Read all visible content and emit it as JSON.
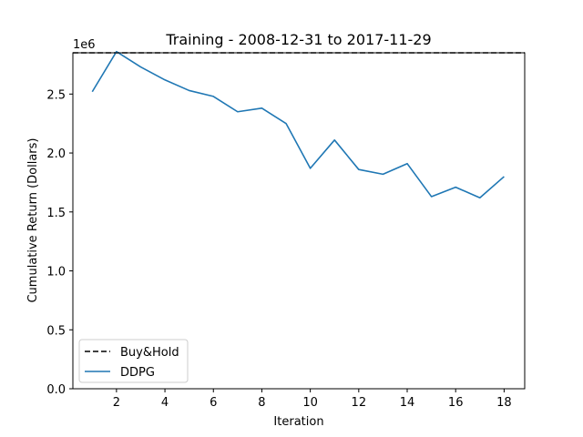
{
  "chart_data": {
    "type": "line",
    "title": "Training - 2008-12-31 to 2017-11-29",
    "xlabel": "Iteration",
    "ylabel": "Cumulative Return (Dollars)",
    "y_offset_label": "1e6",
    "xlim": [
      0.2,
      18.85
    ],
    "ylim": [
      0,
      2.85
    ],
    "x_ticks": [
      2,
      4,
      6,
      8,
      10,
      12,
      14,
      16,
      18
    ],
    "x_tick_labels": [
      "2",
      "4",
      "6",
      "8",
      "10",
      "12",
      "14",
      "16",
      "18"
    ],
    "y_ticks": [
      0,
      0.5,
      1.0,
      1.5,
      2.0,
      2.5
    ],
    "y_tick_labels": [
      "0.0",
      "0.5",
      "1.0",
      "1.5",
      "2.0",
      "2.5"
    ],
    "grid": false,
    "legend_position": "lower-left",
    "series": [
      {
        "name": "Buy&Hold",
        "style": "dashed",
        "color": "#000000",
        "x": [
          0.2,
          18.85
        ],
        "values": [
          2.85,
          2.85
        ]
      },
      {
        "name": "DDPG",
        "style": "solid",
        "color": "#1f77b4",
        "x": [
          1,
          2,
          3,
          4,
          5,
          6,
          7,
          8,
          9,
          10,
          11,
          12,
          13,
          14,
          15,
          16,
          17,
          18
        ],
        "values": [
          2.52,
          2.86,
          2.73,
          2.62,
          2.53,
          2.48,
          2.35,
          2.38,
          2.25,
          1.87,
          2.11,
          1.86,
          1.82,
          1.91,
          1.63,
          1.71,
          1.62,
          1.8
        ]
      }
    ]
  }
}
